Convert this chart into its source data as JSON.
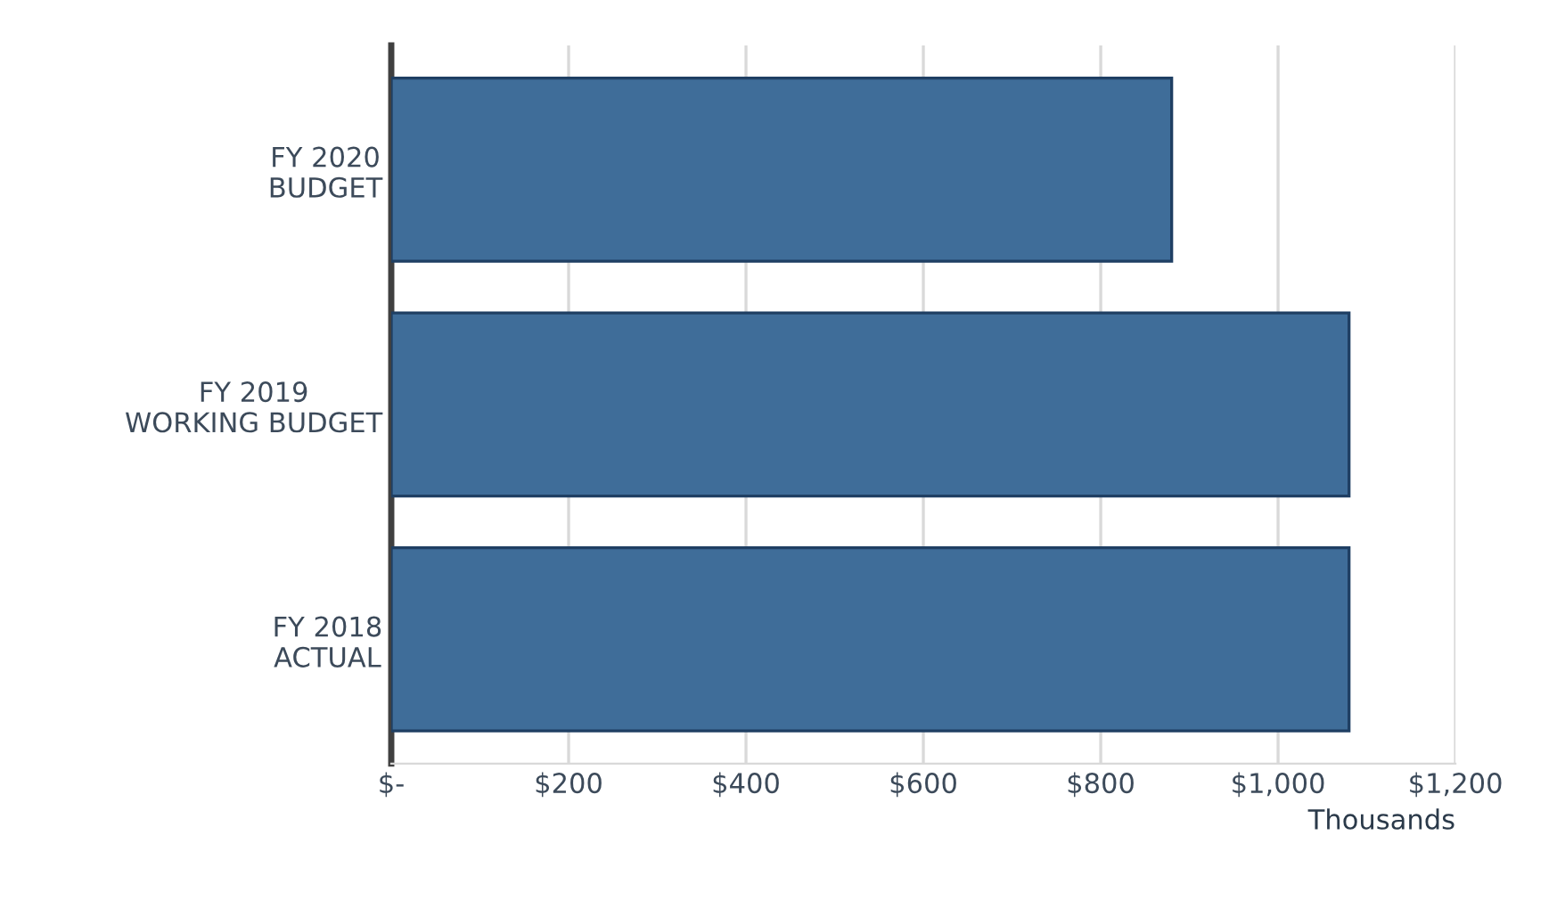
{
  "chart_data": {
    "type": "bar",
    "orientation": "horizontal",
    "categories": [
      "FY 2020\nBUDGET",
      "FY 2019\nWORKING BUDGET",
      "FY 2018\nACTUAL"
    ],
    "values": [
      880,
      1080,
      1080
    ],
    "color": "#3f6d99",
    "xlim": [
      0,
      1200
    ],
    "xticks": [
      {
        "value": 0,
        "label": "$-"
      },
      {
        "value": 200,
        "label": "$200"
      },
      {
        "value": 400,
        "label": "$400"
      },
      {
        "value": 600,
        "label": "$600"
      },
      {
        "value": 800,
        "label": "$800"
      },
      {
        "value": 1000,
        "label": "$1,000"
      },
      {
        "value": 1200,
        "label": "$1,200"
      }
    ],
    "xlabel": "Thousands",
    "grid": "x"
  }
}
